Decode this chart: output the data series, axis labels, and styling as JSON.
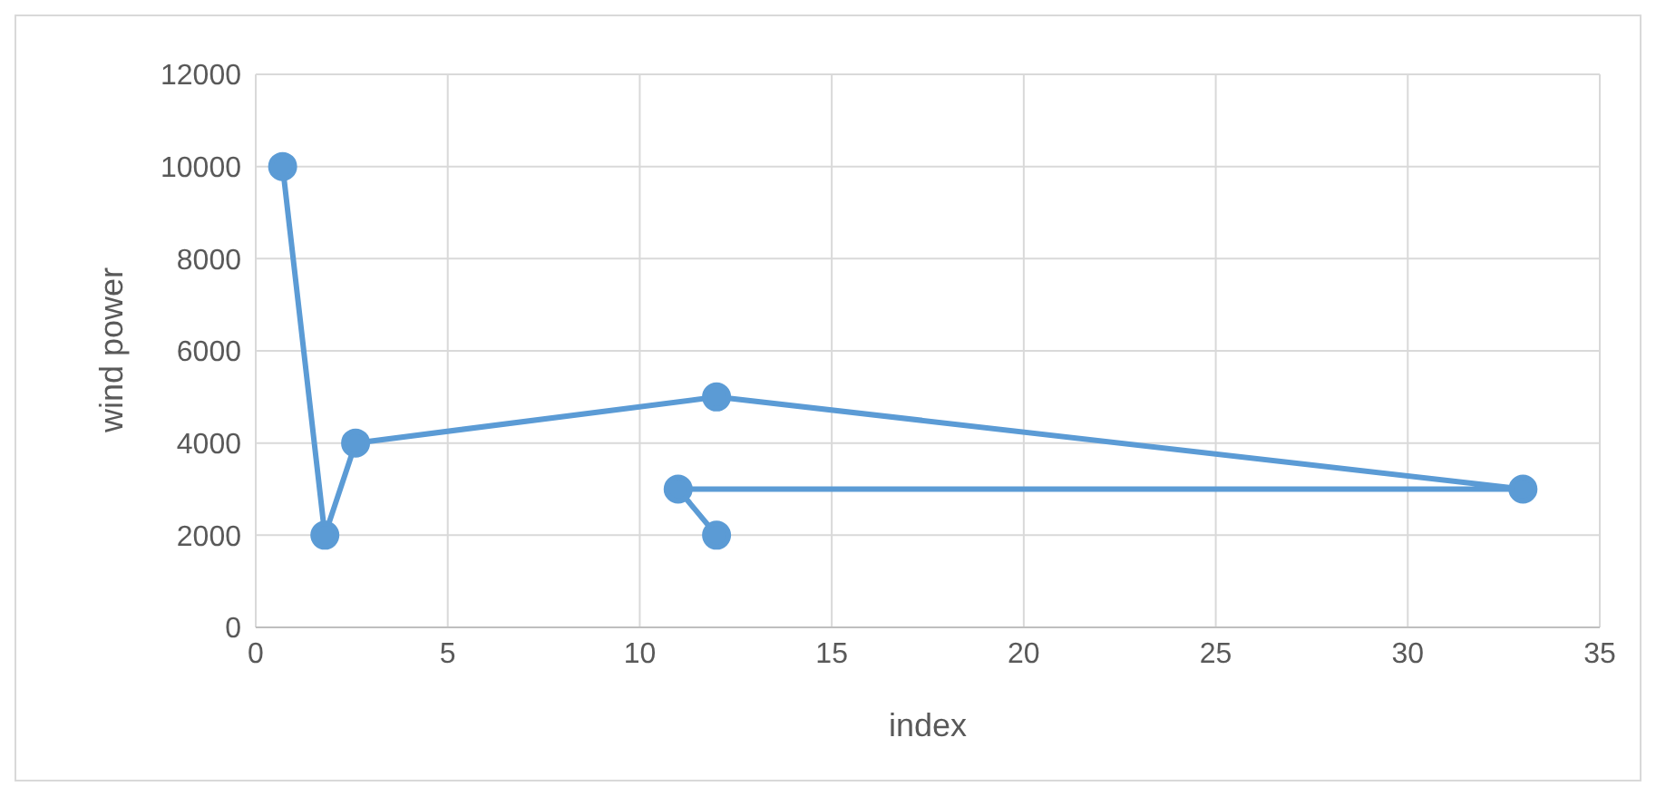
{
  "chart_data": {
    "type": "line",
    "xlabel": "index",
    "ylabel": "wind power",
    "x": [
      0.7,
      1.8,
      2.6,
      12,
      33,
      11,
      12
    ],
    "series": [
      {
        "color": "#5b9bd5",
        "values": [
          10000,
          2000,
          4000,
          5000,
          3000,
          3000,
          2000
        ]
      }
    ],
    "xlim": [
      0,
      35
    ],
    "xticks": [
      0,
      5,
      10,
      15,
      20,
      25,
      30,
      35
    ],
    "ylim": [
      0,
      12000
    ],
    "yticks": [
      0,
      2000,
      4000,
      6000,
      8000,
      10000,
      12000
    ],
    "grid": true,
    "marker": "circle",
    "line_style": "solid",
    "legend": false
  }
}
